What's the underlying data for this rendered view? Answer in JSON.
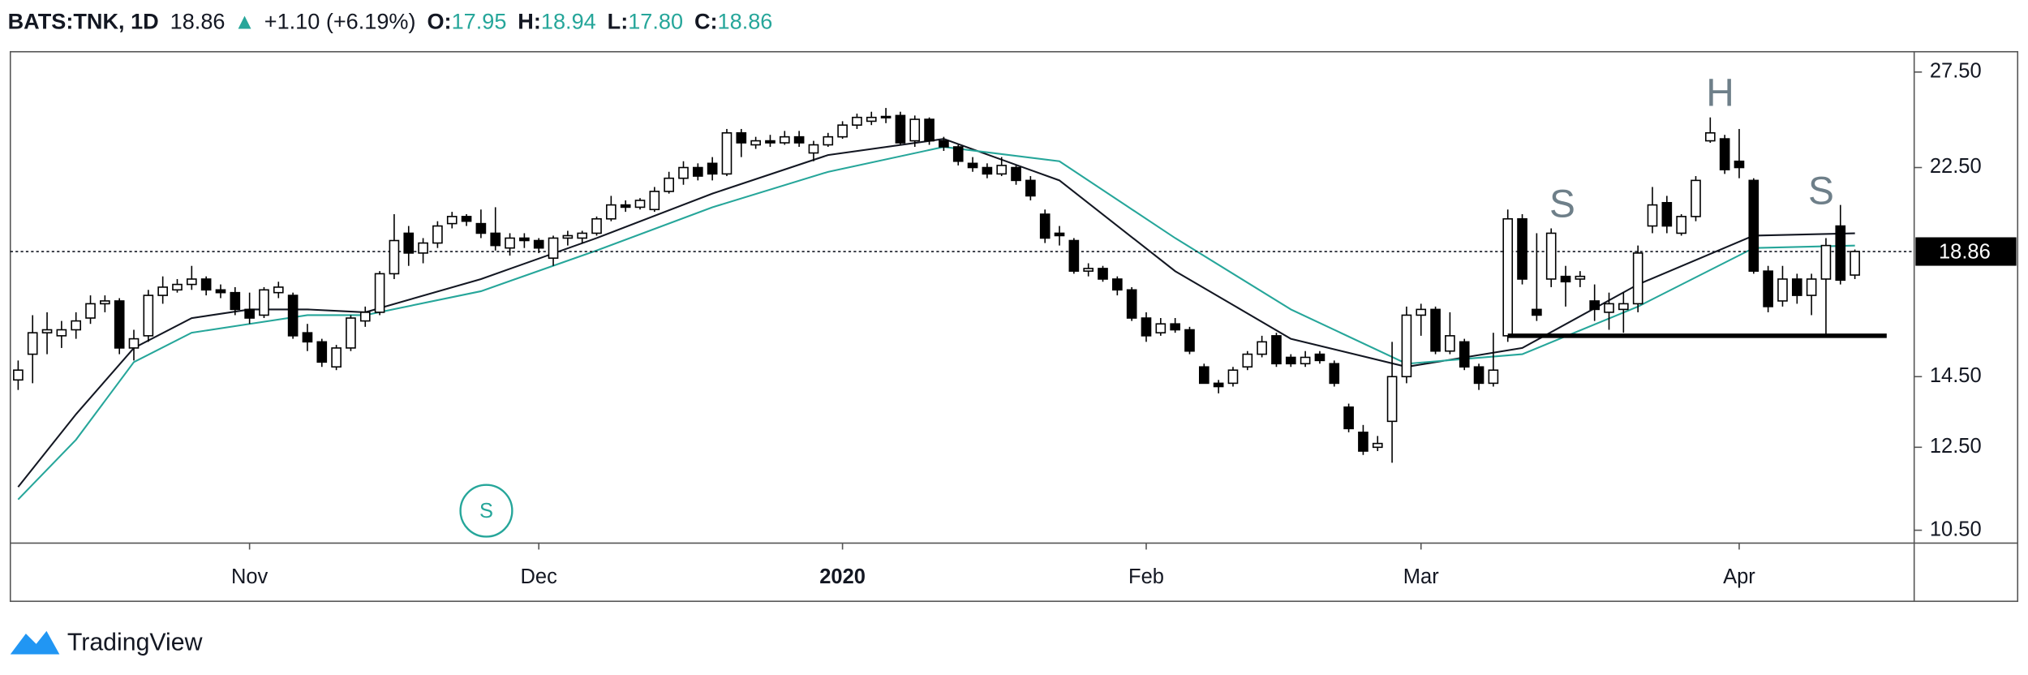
{
  "chart_data": {
    "type": "candlestick",
    "header": {
      "symbol": "BATS:TNK, 1D",
      "price": "18.86",
      "arrow": "▲",
      "change": "+1.10 (+6.19%)",
      "open_label": "O:",
      "open": "17.95",
      "high_label": "H:",
      "high": "18.94",
      "low_label": "L:",
      "low": "17.80",
      "close_label": "C:",
      "close": "18.86"
    },
    "ylim": [
      10.22,
      28.7
    ],
    "log_scale": true,
    "yticks": [
      {
        "value": 10.5,
        "label": "10.50"
      },
      {
        "value": 12.5,
        "label": "12.50"
      },
      {
        "value": 14.5,
        "label": "14.50"
      },
      {
        "value": 22.5,
        "label": "22.50"
      },
      {
        "value": 27.5,
        "label": "27.50"
      }
    ],
    "xlim": [
      -0.54,
      131.1
    ],
    "xticks": [
      {
        "value": 16,
        "label": "Nov"
      },
      {
        "value": 36,
        "label": "Dec"
      },
      {
        "value": 57,
        "label": "2020"
      },
      {
        "value": 78,
        "label": "Feb"
      },
      {
        "value": 97,
        "label": "Mar"
      },
      {
        "value": 119,
        "label": "Apr"
      }
    ],
    "up_color": "#ffffff",
    "down_color": "#000000",
    "ohlc": [
      [
        14.4,
        15.0,
        14.1,
        14.7
      ],
      [
        15.2,
        16.5,
        14.3,
        15.9
      ],
      [
        15.9,
        16.6,
        15.2,
        16.0
      ],
      [
        15.8,
        16.3,
        15.4,
        16.0
      ],
      [
        16.0,
        16.6,
        15.7,
        16.3
      ],
      [
        16.4,
        17.2,
        16.2,
        16.9
      ],
      [
        16.9,
        17.2,
        16.6,
        17.0
      ],
      [
        17.0,
        17.1,
        15.2,
        15.4
      ],
      [
        15.4,
        16.0,
        15.0,
        15.7
      ],
      [
        15.8,
        17.4,
        15.6,
        17.2
      ],
      [
        17.2,
        17.9,
        16.9,
        17.5
      ],
      [
        17.4,
        17.8,
        17.3,
        17.6
      ],
      [
        17.6,
        18.3,
        17.4,
        17.8
      ],
      [
        17.8,
        17.9,
        17.2,
        17.4
      ],
      [
        17.4,
        17.6,
        17.1,
        17.3
      ],
      [
        17.3,
        17.5,
        16.5,
        16.7
      ],
      [
        16.7,
        17.3,
        16.2,
        16.4
      ],
      [
        16.5,
        17.5,
        16.4,
        17.4
      ],
      [
        17.3,
        17.7,
        17.1,
        17.5
      ],
      [
        17.2,
        17.3,
        15.7,
        15.8
      ],
      [
        15.9,
        16.2,
        15.3,
        15.6
      ],
      [
        15.6,
        15.7,
        14.8,
        14.95
      ],
      [
        14.8,
        15.5,
        14.7,
        15.4
      ],
      [
        15.4,
        16.5,
        15.3,
        16.4
      ],
      [
        16.3,
        16.8,
        16.1,
        16.6
      ],
      [
        16.6,
        18.1,
        16.5,
        18.0
      ],
      [
        18.0,
        20.4,
        17.8,
        19.3
      ],
      [
        19.6,
        19.9,
        18.3,
        18.8
      ],
      [
        18.8,
        19.4,
        18.4,
        19.2
      ],
      [
        19.2,
        20.1,
        19.0,
        19.9
      ],
      [
        20.0,
        20.5,
        19.8,
        20.3
      ],
      [
        20.3,
        20.4,
        19.9,
        20.1
      ],
      [
        20.0,
        20.6,
        19.4,
        19.6
      ],
      [
        19.6,
        20.7,
        18.9,
        19.1
      ],
      [
        19.0,
        19.6,
        18.7,
        19.4
      ],
      [
        19.4,
        19.6,
        19.0,
        19.3
      ],
      [
        19.3,
        19.4,
        18.8,
        19.0
      ],
      [
        18.6,
        19.5,
        18.3,
        19.4
      ],
      [
        19.4,
        19.7,
        19.1,
        19.5
      ],
      [
        19.4,
        19.7,
        19.2,
        19.6
      ],
      [
        19.6,
        20.3,
        19.5,
        20.2
      ],
      [
        20.2,
        21.2,
        20.1,
        20.8
      ],
      [
        20.8,
        21.0,
        20.5,
        20.7
      ],
      [
        20.7,
        21.1,
        20.6,
        21.0
      ],
      [
        20.6,
        21.6,
        20.5,
        21.4
      ],
      [
        21.4,
        22.3,
        21.3,
        22.0
      ],
      [
        22.0,
        22.8,
        21.7,
        22.5
      ],
      [
        22.5,
        22.7,
        21.9,
        22.1
      ],
      [
        22.7,
        23.0,
        21.9,
        22.2
      ],
      [
        22.2,
        24.4,
        22.1,
        24.2
      ],
      [
        24.2,
        24.4,
        23.0,
        23.7
      ],
      [
        23.6,
        24.0,
        23.4,
        23.8
      ],
      [
        23.8,
        24.1,
        23.5,
        23.7
      ],
      [
        23.7,
        24.3,
        23.6,
        24.0
      ],
      [
        24.0,
        24.3,
        23.5,
        23.7
      ],
      [
        23.2,
        23.8,
        22.8,
        23.6
      ],
      [
        23.6,
        24.2,
        23.5,
        24.0
      ],
      [
        24.0,
        24.8,
        23.9,
        24.6
      ],
      [
        24.6,
        25.2,
        24.4,
        25.0
      ],
      [
        24.8,
        25.3,
        24.6,
        25.0
      ],
      [
        25.0,
        25.5,
        24.7,
        25.05
      ],
      [
        25.1,
        25.3,
        23.6,
        23.7
      ],
      [
        23.8,
        25.1,
        23.5,
        24.9
      ],
      [
        24.9,
        25.0,
        23.6,
        23.8
      ],
      [
        23.8,
        24.0,
        23.3,
        23.5
      ],
      [
        23.5,
        23.6,
        22.6,
        22.8
      ],
      [
        22.7,
        23.0,
        22.3,
        22.5
      ],
      [
        22.5,
        22.7,
        22.0,
        22.2
      ],
      [
        22.2,
        23.0,
        22.1,
        22.6
      ],
      [
        22.5,
        22.6,
        21.7,
        21.9
      ],
      [
        21.9,
        22.1,
        21.0,
        21.2
      ],
      [
        20.4,
        20.6,
        19.2,
        19.4
      ],
      [
        19.6,
        19.9,
        19.1,
        19.5
      ],
      [
        19.3,
        19.4,
        18.0,
        18.1
      ],
      [
        18.1,
        18.4,
        17.9,
        18.2
      ],
      [
        18.2,
        18.3,
        17.7,
        17.8
      ],
      [
        17.8,
        17.9,
        17.2,
        17.4
      ],
      [
        17.4,
        17.5,
        16.3,
        16.4
      ],
      [
        16.4,
        16.6,
        15.6,
        15.8
      ],
      [
        15.9,
        16.4,
        15.8,
        16.2
      ],
      [
        16.2,
        16.4,
        15.9,
        16.0
      ],
      [
        16.0,
        16.1,
        15.2,
        15.3
      ],
      [
        14.8,
        14.9,
        14.3,
        14.3
      ],
      [
        14.3,
        14.4,
        14.0,
        14.2
      ],
      [
        14.3,
        14.8,
        14.2,
        14.7
      ],
      [
        14.8,
        15.3,
        14.7,
        15.2
      ],
      [
        15.2,
        15.8,
        15.1,
        15.6
      ],
      [
        15.8,
        15.9,
        14.8,
        14.9
      ],
      [
        15.1,
        15.2,
        14.8,
        14.9
      ],
      [
        14.9,
        15.3,
        14.8,
        15.1
      ],
      [
        15.2,
        15.3,
        14.9,
        15.0
      ],
      [
        14.9,
        15.0,
        14.2,
        14.3
      ],
      [
        13.6,
        13.7,
        12.9,
        13.0
      ],
      [
        12.9,
        13.1,
        12.3,
        12.4
      ],
      [
        12.5,
        12.8,
        12.4,
        12.6
      ],
      [
        13.2,
        15.6,
        12.1,
        14.5
      ],
      [
        14.5,
        16.8,
        14.3,
        16.5
      ],
      [
        16.5,
        16.9,
        15.8,
        16.7
      ],
      [
        16.7,
        16.8,
        15.2,
        15.3
      ],
      [
        15.3,
        16.6,
        15.2,
        15.8
      ],
      [
        15.6,
        15.7,
        14.7,
        14.8
      ],
      [
        14.8,
        14.9,
        14.1,
        14.3
      ],
      [
        14.3,
        15.9,
        14.2,
        14.7
      ],
      [
        15.8,
        20.6,
        15.6,
        20.2
      ],
      [
        20.2,
        20.4,
        17.6,
        17.8
      ],
      [
        16.7,
        19.6,
        16.3,
        16.5
      ],
      [
        17.8,
        19.8,
        17.5,
        19.6
      ],
      [
        17.9,
        18.3,
        16.8,
        17.7
      ],
      [
        17.8,
        18.1,
        17.5,
        17.9
      ],
      [
        17.0,
        17.6,
        16.3,
        16.7
      ],
      [
        16.6,
        17.3,
        16.0,
        16.9
      ],
      [
        16.7,
        17.3,
        15.9,
        16.9
      ],
      [
        16.9,
        19.1,
        16.6,
        18.8
      ],
      [
        19.9,
        21.6,
        19.6,
        20.8
      ],
      [
        20.9,
        21.2,
        19.6,
        19.9
      ],
      [
        19.6,
        20.4,
        19.5,
        20.3
      ],
      [
        20.3,
        22.1,
        20.1,
        21.9
      ],
      [
        23.8,
        25.0,
        23.7,
        24.2
      ],
      [
        23.9,
        24.1,
        22.2,
        22.4
      ],
      [
        22.8,
        24.4,
        22.0,
        22.5
      ],
      [
        21.9,
        22.0,
        18.0,
        18.1
      ],
      [
        18.1,
        18.3,
        16.6,
        16.8
      ],
      [
        17.0,
        18.3,
        16.8,
        17.8
      ],
      [
        17.8,
        18.0,
        16.9,
        17.2
      ],
      [
        17.2,
        18.0,
        16.5,
        17.8
      ],
      [
        17.8,
        19.4,
        15.8,
        19.1
      ],
      [
        19.9,
        20.8,
        17.6,
        17.76
      ],
      [
        17.95,
        18.94,
        17.8,
        18.86
      ]
    ],
    "moving_averages": [
      {
        "color": "#131722",
        "x": [
          0,
          4,
          8,
          12,
          16,
          20,
          24,
          32,
          40,
          48,
          56,
          64,
          72,
          80,
          88,
          96,
          104,
          112,
          120,
          127
        ],
        "values": [
          11.5,
          13.4,
          15.4,
          16.4,
          16.7,
          16.7,
          16.6,
          17.8,
          19.4,
          21.3,
          23.1,
          23.9,
          21.9,
          18.1,
          15.7,
          14.8,
          15.4,
          17.6,
          19.5,
          19.6
        ]
      },
      {
        "color": "#26a69a",
        "x": [
          0,
          4,
          8,
          12,
          16,
          20,
          24,
          32,
          40,
          48,
          56,
          64,
          72,
          80,
          88,
          96,
          104,
          112,
          120,
          127
        ],
        "values": [
          11.2,
          12.7,
          14.95,
          15.9,
          16.2,
          16.5,
          16.5,
          17.35,
          18.9,
          20.7,
          22.3,
          23.5,
          22.8,
          19.4,
          16.7,
          14.9,
          15.2,
          16.8,
          19.0,
          19.1
        ]
      }
    ],
    "neckline": {
      "value": 15.8,
      "from": 103,
      "to": 129.2
    },
    "last_price": 18.86,
    "annotations": [
      "S",
      "H",
      "S"
    ],
    "marker": "S",
    "brand": "TradingView"
  }
}
